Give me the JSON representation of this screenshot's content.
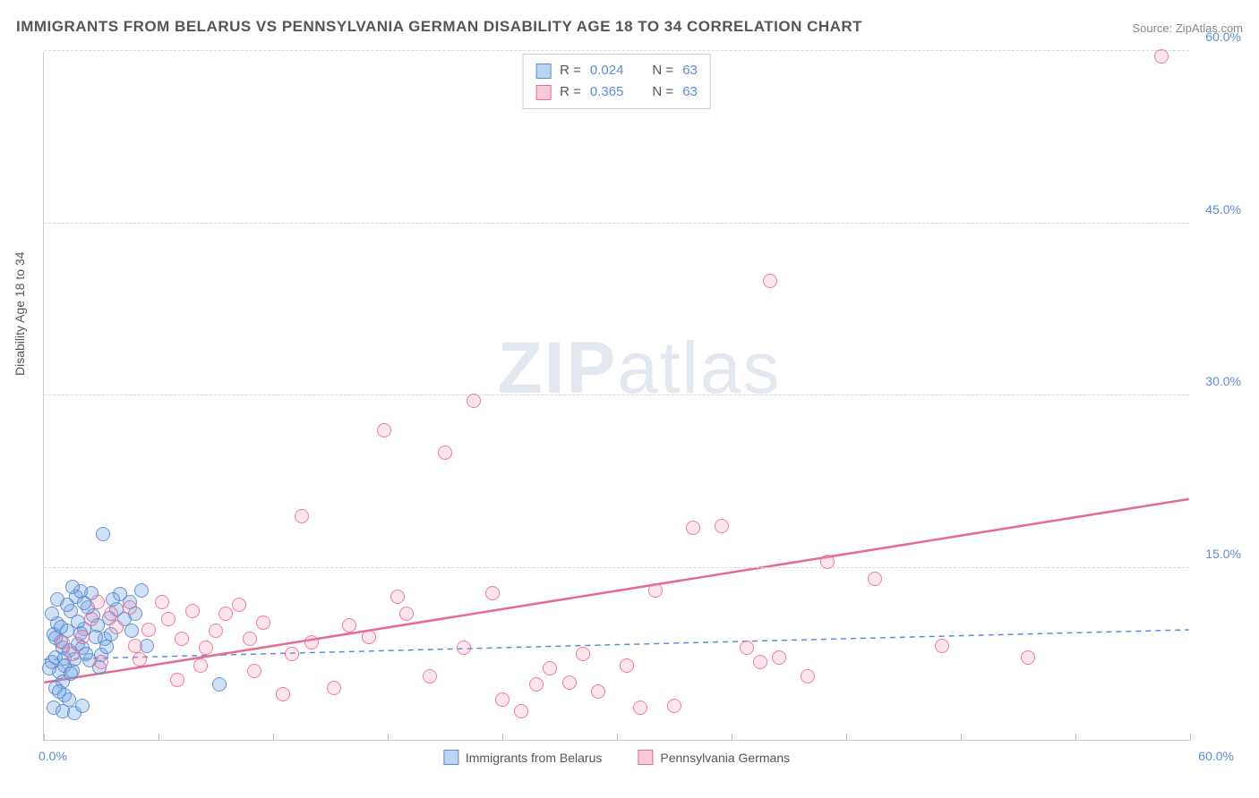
{
  "title": "IMMIGRANTS FROM BELARUS VS PENNSYLVANIA GERMAN DISABILITY AGE 18 TO 34 CORRELATION CHART",
  "source": "Source: ZipAtlas.com",
  "y_axis_title": "Disability Age 18 to 34",
  "watermark": {
    "bold": "ZIP",
    "light": "atlas"
  },
  "chart": {
    "type": "scatter",
    "xlim": [
      0,
      60
    ],
    "ylim": [
      0,
      60
    ],
    "y_ticks": [
      15,
      30,
      45,
      60
    ],
    "y_tick_labels": [
      "15.0%",
      "30.0%",
      "45.0%",
      "60.0%"
    ],
    "x_ticks": [
      0,
      6,
      12,
      18,
      24,
      30,
      36,
      42,
      48,
      54,
      60
    ],
    "x_start_label": "0.0%",
    "x_end_label": "60.0%",
    "background_color": "#ffffff",
    "grid_color": "#d8d8d8",
    "marker_radius": 8,
    "series": [
      {
        "name": "Immigrants from Belarus",
        "color_fill": "rgba(120,170,230,0.35)",
        "color_stroke": "#5b8dd6",
        "class": "blue",
        "R": "0.024",
        "N": "63",
        "trend": {
          "y_at_x0": 7.0,
          "y_at_x60": 9.6,
          "dashed": true,
          "color": "#5b8dd6",
          "width": 1.5
        },
        "points": [
          [
            0.4,
            6.8
          ],
          [
            0.6,
            7.2
          ],
          [
            0.8,
            5.9
          ],
          [
            1.0,
            8.0
          ],
          [
            1.1,
            6.5
          ],
          [
            0.5,
            9.2
          ],
          [
            1.3,
            7.8
          ],
          [
            0.7,
            10.1
          ],
          [
            1.5,
            6.0
          ],
          [
            1.2,
            9.5
          ],
          [
            0.9,
            8.6
          ],
          [
            1.6,
            7.0
          ],
          [
            0.3,
            6.2
          ],
          [
            1.0,
            5.1
          ],
          [
            1.4,
            11.2
          ],
          [
            1.8,
            8.3
          ],
          [
            2.1,
            9.7
          ],
          [
            2.4,
            6.9
          ],
          [
            2.0,
            8.0
          ],
          [
            1.7,
            12.5
          ],
          [
            2.6,
            10.8
          ],
          [
            0.6,
            4.5
          ],
          [
            1.1,
            3.9
          ],
          [
            0.8,
            4.2
          ],
          [
            1.3,
            3.5
          ],
          [
            2.3,
            11.5
          ],
          [
            3.0,
            7.4
          ],
          [
            3.2,
            8.8
          ],
          [
            2.8,
            10.0
          ],
          [
            3.5,
            9.2
          ],
          [
            2.5,
            12.8
          ],
          [
            3.8,
            11.4
          ],
          [
            4.2,
            10.5
          ],
          [
            4.5,
            12.0
          ],
          [
            5.1,
            13.0
          ],
          [
            3.1,
            17.9
          ],
          [
            1.9,
            12.9
          ],
          [
            2.2,
            7.5
          ],
          [
            0.5,
            2.8
          ],
          [
            1.0,
            2.5
          ],
          [
            1.6,
            2.3
          ],
          [
            2.0,
            3.0
          ],
          [
            4.0,
            12.7
          ],
          [
            4.8,
            11.0
          ],
          [
            3.6,
            12.2
          ],
          [
            2.9,
            6.3
          ],
          [
            1.4,
            5.8
          ],
          [
            0.9,
            9.8
          ],
          [
            2.7,
            9.0
          ],
          [
            3.4,
            10.6
          ],
          [
            1.2,
            11.8
          ],
          [
            1.8,
            10.3
          ],
          [
            4.6,
            9.5
          ],
          [
            5.4,
            8.2
          ],
          [
            9.2,
            4.8
          ],
          [
            0.4,
            11.0
          ],
          [
            0.7,
            12.2
          ],
          [
            1.5,
            13.3
          ],
          [
            0.6,
            8.9
          ],
          [
            1.1,
            7.1
          ],
          [
            2.1,
            11.9
          ],
          [
            1.9,
            9.3
          ],
          [
            3.3,
            8.1
          ]
        ]
      },
      {
        "name": "Pennsylvania Germans",
        "color_fill": "rgba(245,150,180,0.25)",
        "color_stroke": "#e76a93",
        "class": "pink",
        "R": "0.365",
        "N": "63",
        "trend": {
          "y_at_x0": 5.0,
          "y_at_x60": 21.0,
          "dashed": false,
          "color": "#e76a93",
          "width": 2.5
        },
        "points": [
          [
            1.0,
            8.5
          ],
          [
            2.5,
            10.5
          ],
          [
            3.8,
            9.8
          ],
          [
            4.5,
            11.5
          ],
          [
            5.0,
            7.0
          ],
          [
            6.2,
            12.0
          ],
          [
            7.0,
            5.2
          ],
          [
            7.8,
            11.2
          ],
          [
            8.5,
            8.0
          ],
          [
            9.0,
            9.5
          ],
          [
            10.2,
            11.8
          ],
          [
            11.0,
            6.0
          ],
          [
            12.5,
            4.0
          ],
          [
            13.5,
            19.5
          ],
          [
            14.0,
            8.5
          ],
          [
            15.2,
            4.5
          ],
          [
            16.0,
            10.0
          ],
          [
            17.0,
            9.0
          ],
          [
            17.8,
            27.0
          ],
          [
            18.5,
            12.5
          ],
          [
            19.0,
            11.0
          ],
          [
            20.2,
            5.5
          ],
          [
            21.0,
            25.0
          ],
          [
            22.0,
            8.0
          ],
          [
            22.5,
            29.5
          ],
          [
            23.5,
            12.8
          ],
          [
            24.0,
            3.5
          ],
          [
            25.0,
            2.5
          ],
          [
            25.8,
            4.8
          ],
          [
            26.5,
            6.2
          ],
          [
            27.5,
            5.0
          ],
          [
            28.2,
            7.5
          ],
          [
            29.0,
            4.2
          ],
          [
            30.5,
            6.5
          ],
          [
            31.2,
            2.8
          ],
          [
            32.0,
            13.0
          ],
          [
            33.0,
            3.0
          ],
          [
            34.0,
            18.5
          ],
          [
            35.5,
            18.6
          ],
          [
            36.8,
            8.0
          ],
          [
            37.5,
            6.8
          ],
          [
            38.0,
            40.0
          ],
          [
            38.5,
            7.2
          ],
          [
            40.0,
            5.5
          ],
          [
            41.0,
            15.5
          ],
          [
            43.5,
            14.0
          ],
          [
            47.0,
            8.2
          ],
          [
            51.5,
            7.2
          ],
          [
            58.5,
            59.5
          ],
          [
            3.0,
            6.8
          ],
          [
            4.8,
            8.2
          ],
          [
            6.5,
            10.5
          ],
          [
            8.2,
            6.5
          ],
          [
            10.8,
            8.8
          ],
          [
            13.0,
            7.5
          ],
          [
            2.0,
            9.0
          ],
          [
            1.5,
            7.5
          ],
          [
            2.8,
            12.0
          ],
          [
            3.5,
            11.0
          ],
          [
            5.5,
            9.6
          ],
          [
            7.2,
            8.8
          ],
          [
            9.5,
            11.0
          ],
          [
            11.5,
            10.2
          ]
        ]
      }
    ]
  },
  "stats_box": {
    "rows": [
      {
        "swatch": "blue",
        "r_label": "R =",
        "r_val": "0.024",
        "n_label": "N =",
        "n_val": "63"
      },
      {
        "swatch": "pink",
        "r_label": "R =",
        "r_val": "0.365",
        "n_label": "N =",
        "n_val": "63"
      }
    ]
  },
  "legend": {
    "items": [
      {
        "swatch": "blue",
        "label": "Immigrants from Belarus"
      },
      {
        "swatch": "pink",
        "label": "Pennsylvania Germans"
      }
    ]
  }
}
